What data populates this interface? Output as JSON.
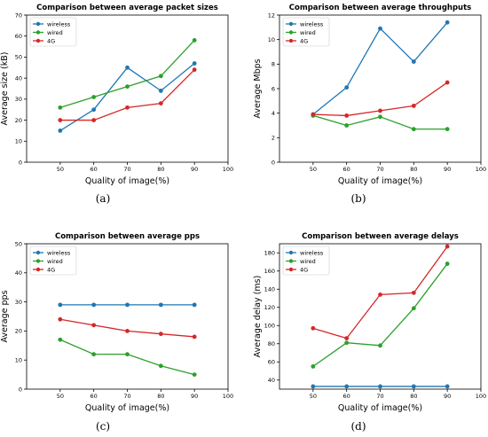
{
  "figure": {
    "background": "#ffffff"
  },
  "chart_data": [
    {
      "type": "line",
      "title": "Comparison between average packet sizes",
      "xlabel": "Quality of image(%)",
      "ylabel": "Average size (kB)",
      "caption": "(a)",
      "xlim": [
        40,
        100
      ],
      "ylim": [
        0,
        70
      ],
      "xticks": [
        50,
        60,
        70,
        80,
        90,
        100
      ],
      "yticks": [
        0,
        10,
        20,
        30,
        40,
        50,
        60,
        70
      ],
      "legend_position": "upper-left",
      "x": [
        50,
        60,
        70,
        80,
        90
      ],
      "series": [
        {
          "name": "wireless",
          "color": "#1f77b4",
          "values": [
            15,
            25,
            45,
            34,
            47
          ]
        },
        {
          "name": "wired",
          "color": "#2ca02c",
          "values": [
            26,
            31,
            36,
            41,
            58
          ]
        },
        {
          "name": "4G",
          "color": "#d62728",
          "values": [
            20,
            20,
            26,
            28,
            44
          ]
        }
      ]
    },
    {
      "type": "line",
      "title": "Comparison between average throughputs",
      "xlabel": "Quality of image(%)",
      "ylabel": "Average Mbps",
      "caption": "(b)",
      "xlim": [
        40,
        100
      ],
      "ylim": [
        0,
        12
      ],
      "xticks": [
        50,
        60,
        70,
        80,
        90,
        100
      ],
      "yticks": [
        0,
        2,
        4,
        6,
        8,
        10,
        12
      ],
      "legend_position": "upper-left",
      "x": [
        50,
        60,
        70,
        80,
        90
      ],
      "series": [
        {
          "name": "wireless",
          "color": "#1f77b4",
          "values": [
            3.9,
            6.1,
            10.9,
            8.2,
            11.4
          ]
        },
        {
          "name": "wired",
          "color": "#2ca02c",
          "values": [
            3.8,
            3.0,
            3.7,
            2.7,
            2.7
          ]
        },
        {
          "name": "4G",
          "color": "#d62728",
          "values": [
            3.9,
            3.8,
            4.2,
            4.6,
            6.5
          ]
        }
      ]
    },
    {
      "type": "line",
      "title": "Comparison between average pps",
      "xlabel": "Quality of image(%)",
      "ylabel": "Average pps",
      "caption": "(c)",
      "xlim": [
        40,
        100
      ],
      "ylim": [
        0,
        50
      ],
      "xticks": [
        50,
        60,
        70,
        80,
        90,
        100
      ],
      "yticks": [
        0,
        10,
        20,
        30,
        40,
        50
      ],
      "legend_position": "upper-left",
      "x": [
        50,
        60,
        70,
        80,
        90
      ],
      "series": [
        {
          "name": "wireless",
          "color": "#1f77b4",
          "values": [
            29,
            29,
            29,
            29,
            29
          ]
        },
        {
          "name": "wired",
          "color": "#2ca02c",
          "values": [
            17,
            12,
            12,
            8,
            5
          ]
        },
        {
          "name": "4G",
          "color": "#d62728",
          "values": [
            24,
            22,
            20,
            19,
            18
          ]
        }
      ]
    },
    {
      "type": "line",
      "title": "Comparison between average delays",
      "xlabel": "Quality of image(%)",
      "ylabel": "Average delay (ms)",
      "caption": "(d)",
      "xlim": [
        40,
        100
      ],
      "ylim": [
        30,
        190
      ],
      "xticks": [
        50,
        60,
        70,
        80,
        90,
        100
      ],
      "yticks": [
        40,
        60,
        80,
        100,
        120,
        140,
        160,
        180
      ],
      "legend_position": "upper-left",
      "x": [
        50,
        60,
        70,
        80,
        90
      ],
      "series": [
        {
          "name": "wireless",
          "color": "#1f77b4",
          "values": [
            33,
            33,
            33,
            33,
            33
          ]
        },
        {
          "name": "wired",
          "color": "#2ca02c",
          "values": [
            55,
            81,
            78,
            119,
            168
          ]
        },
        {
          "name": "4G",
          "color": "#d62728",
          "values": [
            97,
            86,
            134,
            136,
            187
          ]
        }
      ]
    }
  ]
}
